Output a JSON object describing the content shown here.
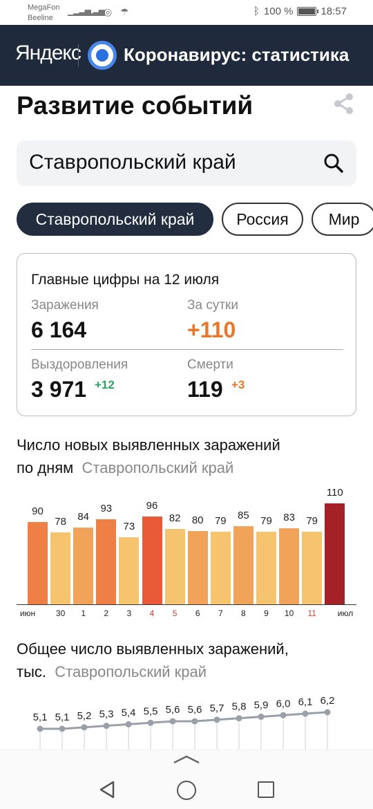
{
  "status_bar": {
    "carrier1": "MegaFon",
    "carrier2": "Beeline",
    "battery": "100 %",
    "time": "18:57"
  },
  "header": {
    "logo": "Яндекс",
    "title": "Коронавирус: статистика"
  },
  "page_title": "Развитие событий",
  "search": {
    "value": "Ставропольский край"
  },
  "chips": [
    "Ставропольский край",
    "Россия",
    "Мир"
  ],
  "card": {
    "title": "Главные цифры на 12 июля",
    "infections_label": "Заражения",
    "infections_value": "6 164",
    "daily_label": "За сутки",
    "daily_value": "+110",
    "recovered_label": "Выздоровления",
    "recovered_value": "3 971",
    "recovered_delta": "+12",
    "deaths_label": "Смерти",
    "deaths_value": "119",
    "deaths_delta": "+3"
  },
  "chart1": {
    "title_line1": "Число новых выявленных заражений",
    "title_line2": "по дням",
    "region": "Ставропольский край"
  },
  "chart2": {
    "title_line1": "Общее число выявленных заражений,",
    "title_line2": "тыс.",
    "region": "Ставропольский край"
  },
  "chart_data": [
    {
      "type": "bar",
      "categories": [
        "июн",
        "30",
        "1",
        "2",
        "3",
        "4",
        "5",
        "6",
        "7",
        "8",
        "9",
        "10",
        "11",
        "июл"
      ],
      "values": [
        90,
        78,
        84,
        93,
        73,
        96,
        82,
        80,
        79,
        85,
        79,
        83,
        79,
        110
      ],
      "bar_colors": [
        "#ef7f45",
        "#f6c46f",
        "#f2a35a",
        "#ef7f45",
        "#f6c46f",
        "#e85a38",
        "#f6c46f",
        "#f2a35a",
        "#f6c46f",
        "#f2a35a",
        "#f6c46f",
        "#f2a35a",
        "#f6c46f",
        "#a52128"
      ],
      "red_ticks": [
        "4",
        "5",
        "11"
      ],
      "ylim": [
        0,
        115
      ]
    },
    {
      "type": "line",
      "values": [
        5.1,
        5.1,
        5.2,
        5.3,
        5.4,
        5.5,
        5.6,
        5.6,
        5.7,
        5.8,
        5.9,
        6.0,
        6.1,
        6.2
      ],
      "labels": [
        "5,1",
        "5,1",
        "5,2",
        "5,3",
        "5,4",
        "5,5",
        "5,6",
        "5,6",
        "5,7",
        "5,8",
        "5,9",
        "6,0",
        "6,1",
        "6,2"
      ],
      "color": "#9aa0a8"
    }
  ]
}
